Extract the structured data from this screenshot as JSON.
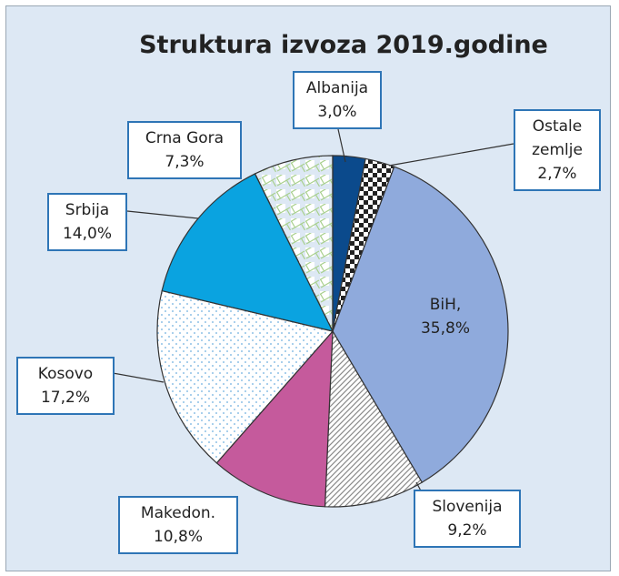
{
  "chart_data": {
    "type": "pie",
    "title": "Struktura izvoza 2019.godine",
    "categories": [
      "Albanija",
      "Ostale zemlje",
      "BiH,",
      "Slovenija",
      "Makedon.",
      "Kosovo",
      "Srbija",
      "Crna Gora"
    ],
    "values": [
      3.0,
      2.7,
      35.8,
      9.2,
      10.8,
      17.2,
      14.0,
      7.3
    ],
    "value_labels": [
      "3,0%",
      "2,7%",
      "35,8%",
      "9,2%",
      "10,8%",
      "17,2%",
      "14,0%",
      "7,3%"
    ],
    "colors": [
      "#0b4a8c",
      "#222222",
      "#8faadc",
      "#8a8a8a",
      "#c55a9c",
      "#8fc1e6",
      "#0aa3e0",
      "#a9d08e"
    ],
    "patterns": [
      null,
      "checker",
      null,
      "hatch",
      null,
      "dots",
      null,
      "brick"
    ]
  }
}
